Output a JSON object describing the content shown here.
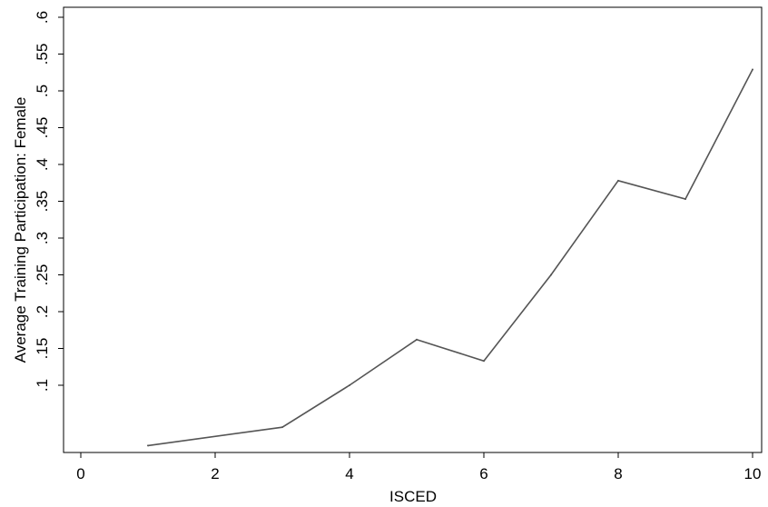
{
  "chart_data": {
    "type": "line",
    "xlabel": "ISCED",
    "ylabel": "Average Training Participation: Female",
    "xlim": [
      0,
      10
    ],
    "ylim": [
      0,
      0.6
    ],
    "x_ticks": [
      0,
      2,
      4,
      6,
      8,
      10
    ],
    "x_tick_labels": [
      "0",
      "2",
      "4",
      "6",
      "8",
      "10"
    ],
    "y_ticks": [
      0.1,
      0.15,
      0.2,
      0.25,
      0.3,
      0.35,
      0.4,
      0.45,
      0.5,
      0.55,
      0.6
    ],
    "y_tick_labels": [
      ".1",
      ".15",
      ".2",
      ".25",
      ".3",
      ".35",
      ".4",
      ".45",
      ".5",
      ".55",
      ".6"
    ],
    "grid": false,
    "legend": "none",
    "line_color": "#555555",
    "series": [
      {
        "x": [
          1,
          3,
          4,
          5,
          6,
          7,
          8,
          9,
          10
        ],
        "y": [
          0.018,
          0.043,
          0.1,
          0.162,
          0.133,
          0.25,
          0.378,
          0.353,
          0.529
        ]
      }
    ]
  }
}
